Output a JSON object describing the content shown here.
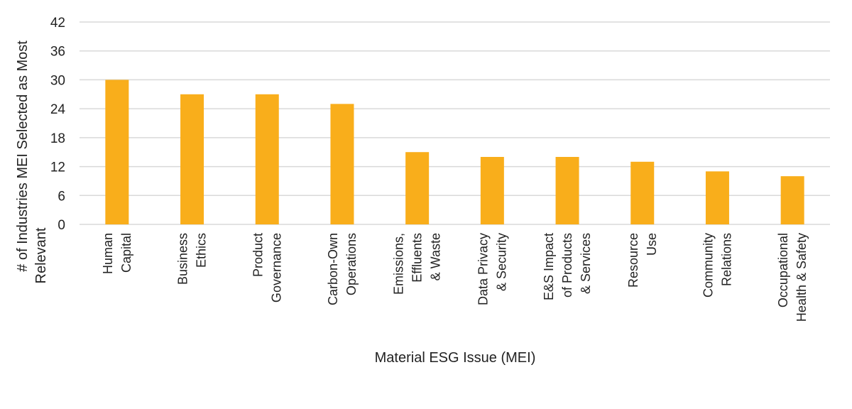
{
  "chart_data": {
    "type": "bar",
    "title": "",
    "xlabel": "Material ESG Issue (MEI)",
    "ylabel": "# of Industries MEI Selected as Most Relevant",
    "ylabel_lines": [
      "# of Industries MEI Selected as Most",
      "Relevant"
    ],
    "ylim": [
      0,
      42
    ],
    "yticks": [
      0,
      6,
      12,
      18,
      24,
      30,
      36,
      42
    ],
    "grid": true,
    "bar_color": "#F9AE1B",
    "categories": [
      "Human Capital",
      "Business Ethics",
      "Product Governance",
      "Carbon-Own Operations",
      "Emissions, Effluents & Waste",
      "Data Privacy & Security",
      "E&S Impact of Products & Services",
      "Resource Use",
      "Community Relations",
      "Occupational Health & Safety"
    ],
    "category_lines": [
      [
        "Human",
        "Capital"
      ],
      [
        "Business",
        "Ethics"
      ],
      [
        "Product",
        "Governance"
      ],
      [
        "Carbon-Own",
        "Operations"
      ],
      [
        "Emissions,",
        "Effluents",
        "& Waste"
      ],
      [
        "Data Privacy",
        "& Security"
      ],
      [
        "E&S Impact",
        "of Products",
        "& Services"
      ],
      [
        "Resource",
        "Use"
      ],
      [
        "Community",
        "Relations"
      ],
      [
        "Occupational",
        "Health & Safety"
      ]
    ],
    "values": [
      30,
      27,
      27,
      25,
      15,
      14,
      14,
      13,
      11,
      10
    ]
  }
}
